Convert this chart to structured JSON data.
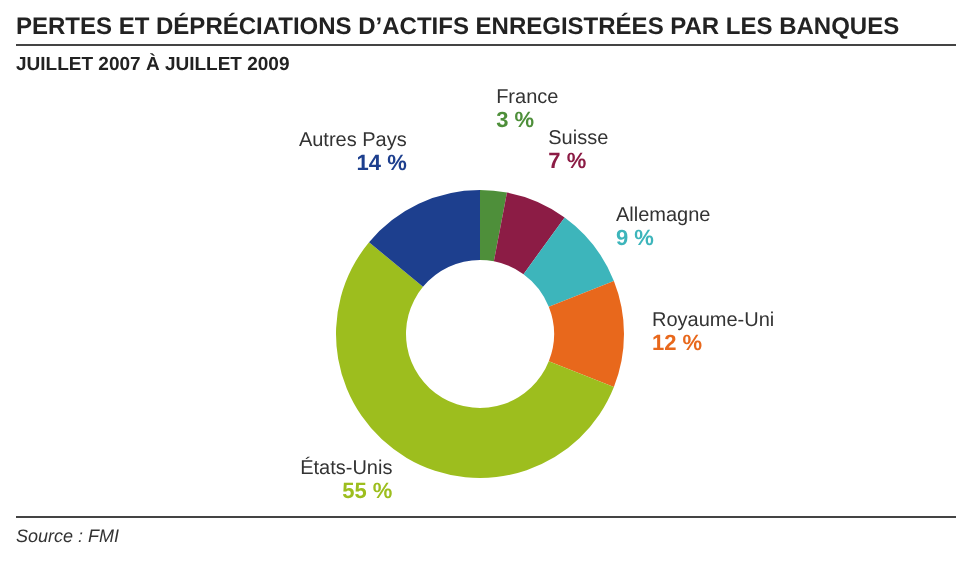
{
  "chart_data": {
    "type": "donut",
    "title": "PERTES ET DÉPRÉCIATIONS D’ACTIFS ENREGISTRÉES PAR LES BANQUES",
    "subtitle": "JUILLET 2007 À JUILLET 2009",
    "categories": [
      "France",
      "Suisse",
      "Allemagne",
      "Royaume-Uni",
      "États-Unis",
      "Autres Pays"
    ],
    "values": [
      3,
      7,
      9,
      12,
      55,
      14
    ],
    "colors": [
      "#4e8f3a",
      "#8c1c45",
      "#3db5bb",
      "#e8681c",
      "#9dbe1e",
      "#1d3f8e"
    ],
    "value_labels": [
      "3 %",
      "7 %",
      "9 %",
      "12 %",
      "55 %",
      "14 %"
    ],
    "annotations": [
      "Source : FMI"
    ]
  }
}
